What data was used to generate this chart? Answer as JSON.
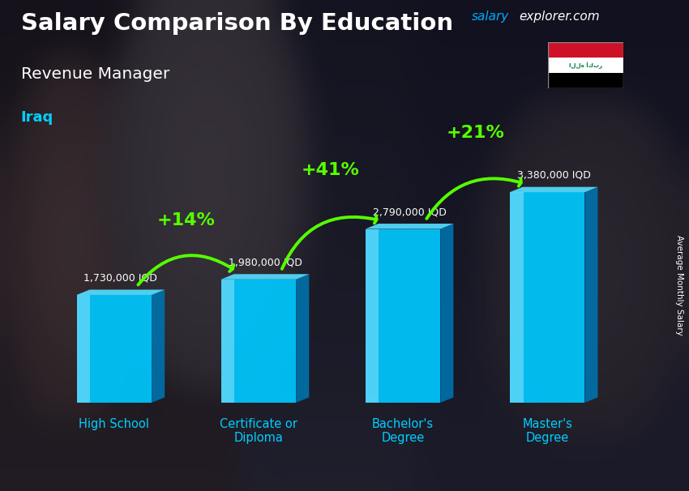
{
  "title": "Salary Comparison By Education",
  "subtitle": "Revenue Manager",
  "country": "Iraq",
  "ylabel": "Average Monthly Salary",
  "website_part1": "salary",
  "website_part2": "explorer.com",
  "categories": [
    "High School",
    "Certificate or\nDiploma",
    "Bachelor's\nDegree",
    "Master's\nDegree"
  ],
  "values": [
    1730000,
    1980000,
    2790000,
    3380000
  ],
  "value_labels": [
    "1,730,000 IQD",
    "1,980,000 IQD",
    "2,790,000 IQD",
    "3,380,000 IQD"
  ],
  "pct_labels": [
    "+14%",
    "+41%",
    "+21%"
  ],
  "bar_face_color": "#00C8FF",
  "bar_right_color": "#0070AA",
  "bar_top_color": "#55DDFF",
  "title_color": "#FFFFFF",
  "subtitle_color": "#FFFFFF",
  "country_color": "#00CFFF",
  "value_color": "#FFFFFF",
  "pct_color": "#55FF00",
  "arrow_color": "#55FF00",
  "cat_label_color": "#00CFFF",
  "website1_color": "#00AAFF",
  "website2_color": "#00AAFF",
  "bg_color": "#2a2a2a",
  "figsize": [
    8.5,
    6.06
  ],
  "dpi": 100
}
